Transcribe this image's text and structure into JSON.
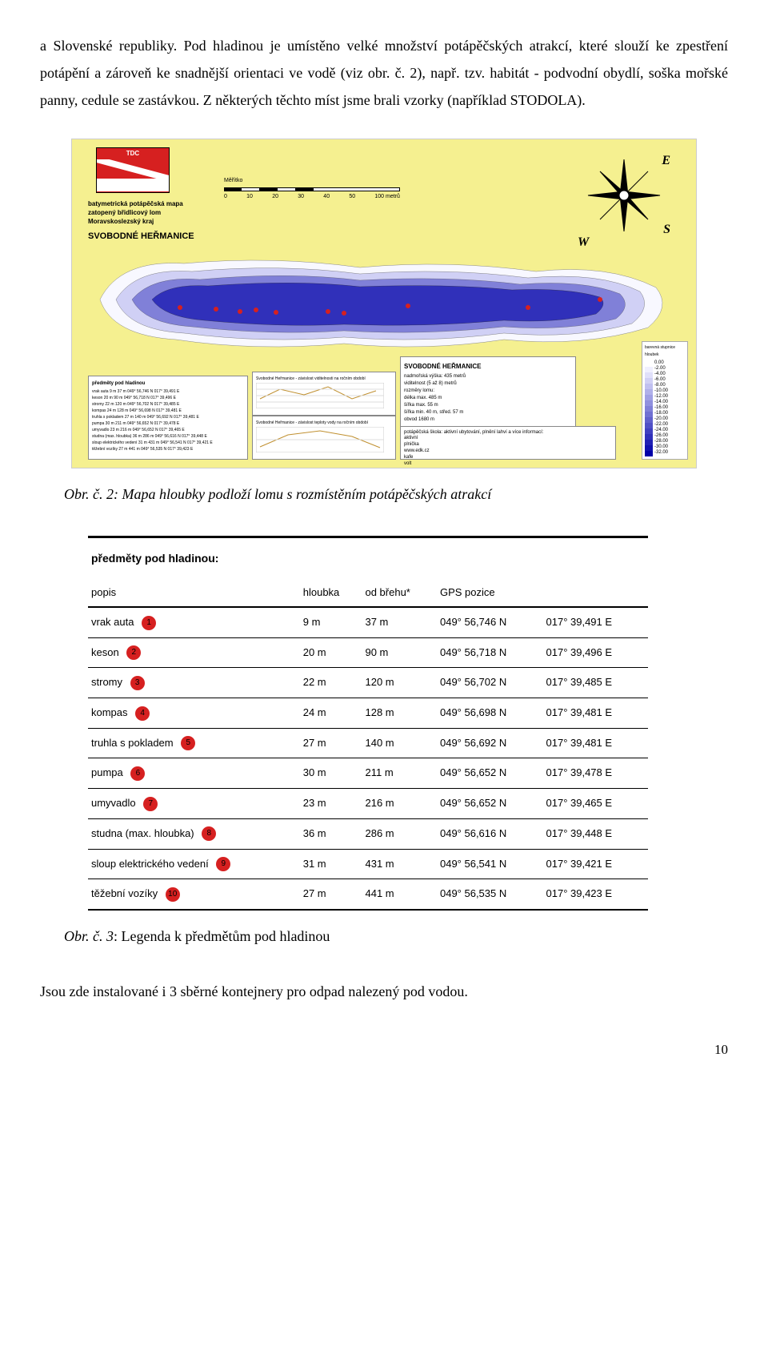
{
  "intro_text": "a Slovenské republiky. Pod hladinou je umístěno velké množství potápěčských atrakcí, které slouží ke zpestření potápění a zároveň ke snadnější orientaci ve vodě (viz obr. č. 2), např. tzv. habitát - podvodní obydlí, soška mořské panny, cedule se zastávkou. Z některých těchto míst jsme brali vzorky (například STODOLA).",
  "map": {
    "flag_label": "TDC",
    "title_lines": [
      "batymetrická potápěčská mapa",
      "zatopený břidlicový lom",
      "Moravskoslezský kraj"
    ],
    "title_main": "SVOBODNÉ HEŘMANICE",
    "scale_label": "Měřítko",
    "scale_ticks": [
      "0",
      "10",
      "20",
      "30",
      "40",
      "50",
      "100 metrů"
    ],
    "compass_letters": [
      "E",
      "S",
      "W"
    ],
    "panel_title": "SVOBODNÉ HEŘMANICE",
    "panel_lines": [
      "nadmořská výška:  435 metrů",
      "viditelnost (5 až 8) metrů",
      "rozměry lomu:",
      "délka     max. 485 m",
      "šířka     max.  55 m",
      "šířka     min.  40 m, střed. 57 m",
      "obvod              1680 m"
    ],
    "panel2_lines": [
      "potápěčská škola:    aktivní     ubytování, plnění lahví a více informací:",
      "aktivní",
      "plnička",
      "www.edk.cz",
      "kafe",
      "volt"
    ],
    "legend_title": "barevná stupnice hloubek",
    "depth_values": [
      "0.00",
      "-2.00",
      "-4.00",
      "-6.00",
      "-8.00",
      "-10.00",
      "-12.00",
      "-14.00",
      "-16.00",
      "-18.00",
      "-20.00",
      "-22.00",
      "-24.00",
      "-26.00",
      "-28.00",
      "-30.00",
      "-32.00"
    ],
    "depth_colors": [
      "#ffffff",
      "#f0f0ff",
      "#e0e0fa",
      "#d0d0f5",
      "#c0c0f0",
      "#b0b0ea",
      "#a0a0e4",
      "#9090de",
      "#8080d8",
      "#7070d2",
      "#6060cc",
      "#5050c6",
      "#4040c0",
      "#3030ba",
      "#2020b4",
      "#1010ae",
      "#0000a8"
    ],
    "mini_table_header": "předměty pod hladinou",
    "chart1_label": "Svobodné Heřmanice - závislost viditelnosti na ročním období",
    "chart2_label": "Svobodné Heřmanice - závislost teploty vody na ročním období"
  },
  "caption1": "Obr. č. 2: Mapa hloubky podloží lomu s rozmístěním potápěčských atrakcí",
  "legend_table": {
    "header": "předměty pod hladinou:",
    "columns": [
      "popis",
      "hloubka",
      "od břehu*",
      "GPS pozice",
      ""
    ],
    "rows": [
      {
        "n": "1",
        "popis": "vrak auta",
        "hloubka": "9 m",
        "breh": "37 m",
        "gps1": "049° 56,746 N",
        "gps2": "017° 39,491 E"
      },
      {
        "n": "2",
        "popis": "keson",
        "hloubka": "20 m",
        "breh": "90 m",
        "gps1": "049° 56,718 N",
        "gps2": "017° 39,496 E"
      },
      {
        "n": "3",
        "popis": "stromy",
        "hloubka": "22 m",
        "breh": "120 m",
        "gps1": "049° 56,702 N",
        "gps2": "017° 39,485 E"
      },
      {
        "n": "4",
        "popis": "kompas",
        "hloubka": "24 m",
        "breh": "128 m",
        "gps1": "049° 56,698 N",
        "gps2": "017° 39,481 E"
      },
      {
        "n": "5",
        "popis": "truhla s pokladem",
        "hloubka": "27 m",
        "breh": "140 m",
        "gps1": "049° 56,692 N",
        "gps2": "017° 39,481 E"
      },
      {
        "n": "6",
        "popis": "pumpa",
        "hloubka": "30 m",
        "breh": "211 m",
        "gps1": "049° 56,652 N",
        "gps2": "017° 39,478 E"
      },
      {
        "n": "7",
        "popis": "umyvadlo",
        "hloubka": "23 m",
        "breh": "216 m",
        "gps1": "049° 56,652 N",
        "gps2": "017° 39,465 E"
      },
      {
        "n": "8",
        "popis": "studna (max. hloubka)",
        "hloubka": "36 m",
        "breh": "286 m",
        "gps1": "049° 56,616 N",
        "gps2": "017° 39,448 E"
      },
      {
        "n": "9",
        "popis": "sloup elektrického vedení",
        "hloubka": "31 m",
        "breh": "431 m",
        "gps1": "049° 56,541 N",
        "gps2": "017° 39,421 E"
      },
      {
        "n": "10",
        "popis": "těžební vozíky",
        "hloubka": "27 m",
        "breh": "441 m",
        "gps1": "049° 56,535 N",
        "gps2": "017° 39,423 E"
      }
    ]
  },
  "caption2_prefix": "Obr. č. 3",
  "caption2_rest": ": Legenda k předmětům pod hladinou",
  "bottom_text": "Jsou zde instalované i 3 sběrné kontejnery pro odpad nalezený pod vodou.",
  "page_number": "10"
}
